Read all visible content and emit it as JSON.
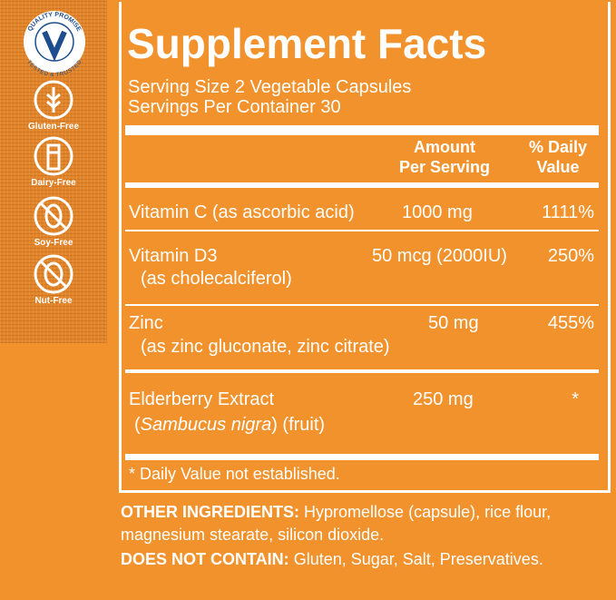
{
  "badges": {
    "quality": {
      "top": "QUALITY PROMISE",
      "bottom": "TESTED & TRUSTED"
    },
    "labels": [
      "Gluten-Free",
      "Dairy-Free",
      "Soy-Free",
      "Nut-Free"
    ]
  },
  "facts": {
    "title": "Supplement Facts",
    "serving_size": "Serving Size 2 Vegetable Capsules",
    "servings_per_container": "Servings Per Container 30",
    "header": {
      "amount": [
        "Amount",
        "Per Serving"
      ],
      "daily_value": [
        "% Daily",
        "Value"
      ]
    },
    "rows": [
      {
        "name": "Vitamin C (as ascorbic acid)",
        "amount": "1000 mg",
        "daily_value": "1111%"
      },
      {
        "name": "Vitamin D3",
        "detail": "(as cholecalciferol)",
        "amount": "50 mcg (2000IU)",
        "daily_value": "250%"
      },
      {
        "name": "Zinc",
        "detail": "(as zinc gluconate, zinc citrate)",
        "amount": "50 mg",
        "daily_value": "455%"
      },
      {
        "name": "Elderberry Extract",
        "detail_open": "(",
        "detail_italic": "Sambucus nigra",
        "detail_close": ") (fruit)",
        "amount": "250 mg",
        "daily_value": "*"
      }
    ],
    "footnote": "* Daily Value not established."
  },
  "other_ingredients": {
    "label": "OTHER INGREDIENTS:",
    "text_line1": "Hypromellose (capsule), rice flour,",
    "text_line2": "magnesium stearate, silicon dioxide."
  },
  "does_not_contain": {
    "label": "DOES NOT CONTAIN:",
    "text": "Gluten, Sugar, Salt, Preservatives."
  }
}
